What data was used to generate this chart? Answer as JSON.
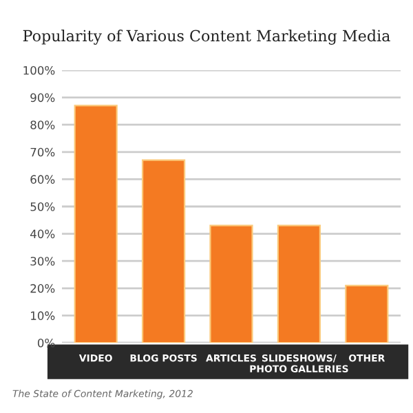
{
  "chart_data": {
    "type": "bar",
    "title": "Popularity of Various Content Marketing Media",
    "categories": [
      "VIDEO",
      "BLOG POSTS",
      "ARTICLES",
      "SLIDESHOWS/\nPHOTO GALLERIES",
      "OTHER"
    ],
    "values": [
      87,
      67,
      43,
      43,
      21
    ],
    "color": "#f47a22",
    "ylim": [
      0,
      100
    ],
    "yticks": [
      {
        "value": 0,
        "label": "0%"
      },
      {
        "value": 10,
        "label": "10%"
      },
      {
        "value": 20,
        "label": "20%"
      },
      {
        "value": 30,
        "label": "30%"
      },
      {
        "value": 40,
        "label": "40%"
      },
      {
        "value": 50,
        "label": "50%"
      },
      {
        "value": 60,
        "label": "60%"
      },
      {
        "value": 70,
        "label": "70%"
      },
      {
        "value": 80,
        "label": "80%"
      },
      {
        "value": 90,
        "label": "90%"
      },
      {
        "value": 100,
        "label": "100%"
      }
    ],
    "grid": "y",
    "annotations": [
      "The State of Content Marketing, 2012"
    ]
  }
}
